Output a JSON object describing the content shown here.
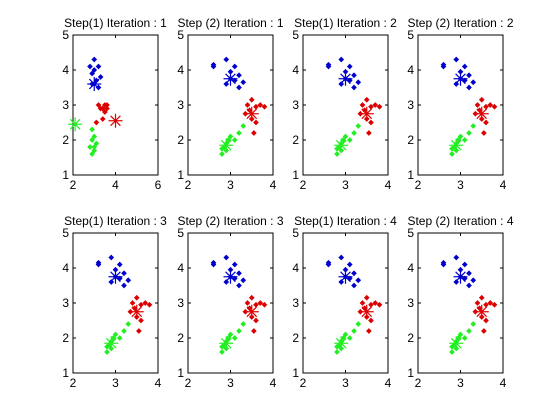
{
  "colors": {
    "blue": "#0000cc",
    "red": "#dd0000",
    "green": "#22ee22",
    "axis": "#000000",
    "background": "#ffffff"
  },
  "chart_data": [
    {
      "type": "scatter",
      "title": "Step(1) Iteration : 1",
      "xlim": [
        2,
        6
      ],
      "ylim": [
        1,
        5
      ],
      "xticks": [
        "2",
        "4",
        "6"
      ],
      "yticks": [
        "1",
        "2",
        "3",
        "4",
        "5"
      ],
      "series": [
        {
          "color": "blue",
          "marker": "point",
          "x": [
            2.8,
            3.0,
            3.2,
            2.9,
            3.1,
            3.0,
            3.3,
            3.0,
            3.2,
            2.9
          ],
          "y": [
            4.1,
            4.3,
            4.1,
            3.9,
            3.7,
            3.6,
            3.8,
            4.0,
            3.5,
            3.6
          ]
        },
        {
          "color": "red",
          "marker": "point",
          "x": [
            3.2,
            3.5,
            3.4,
            3.6,
            3.3,
            3.1,
            3.5,
            3.6,
            3.4
          ],
          "y": [
            3.0,
            3.0,
            2.9,
            2.9,
            2.9,
            2.5,
            2.8,
            3.0,
            2.6
          ]
        },
        {
          "color": "green",
          "marker": "point",
          "x": [
            2.9,
            3.0,
            2.8,
            3.1,
            2.9,
            3.0,
            2.9,
            3.0
          ],
          "y": [
            2.3,
            2.1,
            1.8,
            1.9,
            1.6,
            1.7,
            2.0,
            1.8
          ]
        },
        {
          "color": "blue",
          "marker": "star",
          "x": [
            3.0
          ],
          "y": [
            3.6
          ]
        },
        {
          "color": "red",
          "marker": "star",
          "x": [
            4.0
          ],
          "y": [
            2.55
          ]
        },
        {
          "color": "green",
          "marker": "star",
          "x": [
            2.1
          ],
          "y": [
            2.45
          ]
        }
      ]
    },
    {
      "type": "scatter",
      "title": "Step (2) Iteration : 1",
      "xlim": [
        2,
        4
      ],
      "ylim": [
        1,
        5
      ],
      "xticks": [
        "2",
        "3",
        "4"
      ],
      "yticks": [
        "1",
        "2",
        "3",
        "4",
        "5"
      ],
      "series": [
        {
          "color": "blue",
          "marker": "point",
          "x": [
            2.6,
            2.6,
            2.9,
            3.1,
            3.2,
            3.3,
            3.0,
            2.9,
            3.1,
            3.2,
            3.0
          ],
          "y": [
            4.15,
            4.1,
            4.3,
            4.1,
            3.85,
            3.65,
            3.75,
            3.6,
            3.7,
            3.5,
            3.95
          ]
        },
        {
          "color": "red",
          "marker": "point",
          "x": [
            3.4,
            3.5,
            3.6,
            3.7,
            3.8,
            3.45,
            3.5,
            3.6,
            3.55,
            3.35
          ],
          "y": [
            3.0,
            3.15,
            2.95,
            3.0,
            2.95,
            2.85,
            2.6,
            2.5,
            2.2,
            2.75
          ]
        },
        {
          "color": "green",
          "marker": "point",
          "x": [
            2.8,
            2.9,
            2.85,
            2.9,
            2.95,
            3.0,
            3.2,
            3.3,
            3.1,
            2.8
          ],
          "y": [
            1.6,
            1.7,
            1.8,
            1.9,
            2.0,
            2.1,
            2.2,
            2.4,
            2.0,
            1.75
          ]
        },
        {
          "color": "blue",
          "marker": "star",
          "x": [
            3.0
          ],
          "y": [
            3.75
          ]
        },
        {
          "color": "red",
          "marker": "star",
          "x": [
            3.5
          ],
          "y": [
            2.75
          ]
        },
        {
          "color": "green",
          "marker": "star",
          "x": [
            2.9
          ],
          "y": [
            1.85
          ]
        }
      ]
    },
    {
      "type": "scatter",
      "title": "Step(1) Iteration : 2",
      "xlim": [
        2,
        4
      ],
      "ylim": [
        1,
        5
      ],
      "xticks": [
        "2",
        "3",
        "4"
      ],
      "yticks": [
        "1",
        "2",
        "3",
        "4",
        "5"
      ],
      "series": [
        {
          "color": "blue",
          "marker": "point",
          "x": [
            2.6,
            2.6,
            2.9,
            3.1,
            3.2,
            3.3,
            3.0,
            2.9,
            3.1,
            3.2,
            3.0
          ],
          "y": [
            4.15,
            4.1,
            4.3,
            4.1,
            3.85,
            3.65,
            3.75,
            3.6,
            3.7,
            3.5,
            3.95
          ]
        },
        {
          "color": "red",
          "marker": "point",
          "x": [
            3.4,
            3.5,
            3.6,
            3.7,
            3.8,
            3.45,
            3.5,
            3.6,
            3.55,
            3.35
          ],
          "y": [
            3.0,
            3.15,
            2.95,
            3.0,
            2.95,
            2.85,
            2.6,
            2.5,
            2.2,
            2.75
          ]
        },
        {
          "color": "green",
          "marker": "point",
          "x": [
            2.8,
            2.9,
            2.85,
            2.9,
            2.95,
            3.0,
            3.2,
            3.3,
            3.1,
            2.8
          ],
          "y": [
            1.6,
            1.7,
            1.8,
            1.9,
            2.0,
            2.1,
            2.2,
            2.4,
            2.0,
            1.75
          ]
        },
        {
          "color": "blue",
          "marker": "star",
          "x": [
            3.0
          ],
          "y": [
            3.75
          ]
        },
        {
          "color": "red",
          "marker": "star",
          "x": [
            3.5
          ],
          "y": [
            2.75
          ]
        },
        {
          "color": "green",
          "marker": "star",
          "x": [
            2.9
          ],
          "y": [
            1.85
          ]
        }
      ]
    },
    {
      "type": "scatter",
      "title": "Step (2) Iteration : 2",
      "xlim": [
        2,
        4
      ],
      "ylim": [
        1,
        5
      ],
      "xticks": [
        "2",
        "3",
        "4"
      ],
      "yticks": [
        "1",
        "2",
        "3",
        "4",
        "5"
      ],
      "series": [
        {
          "color": "blue",
          "marker": "point",
          "x": [
            2.6,
            2.6,
            2.9,
            3.1,
            3.2,
            3.3,
            3.0,
            2.9,
            3.1,
            3.2,
            3.0
          ],
          "y": [
            4.15,
            4.1,
            4.3,
            4.1,
            3.85,
            3.65,
            3.75,
            3.6,
            3.7,
            3.5,
            3.95
          ]
        },
        {
          "color": "red",
          "marker": "point",
          "x": [
            3.4,
            3.5,
            3.6,
            3.7,
            3.8,
            3.45,
            3.5,
            3.6,
            3.55,
            3.35
          ],
          "y": [
            3.0,
            3.15,
            2.95,
            3.0,
            2.95,
            2.85,
            2.6,
            2.5,
            2.2,
            2.75
          ]
        },
        {
          "color": "green",
          "marker": "point",
          "x": [
            2.8,
            2.9,
            2.85,
            2.9,
            2.95,
            3.0,
            3.2,
            3.3,
            3.1,
            2.8
          ],
          "y": [
            1.6,
            1.7,
            1.8,
            1.9,
            2.0,
            2.1,
            2.2,
            2.4,
            2.0,
            1.75
          ]
        },
        {
          "color": "blue",
          "marker": "star",
          "x": [
            3.0
          ],
          "y": [
            3.75
          ]
        },
        {
          "color": "red",
          "marker": "star",
          "x": [
            3.5
          ],
          "y": [
            2.75
          ]
        },
        {
          "color": "green",
          "marker": "star",
          "x": [
            2.9
          ],
          "y": [
            1.85
          ]
        }
      ]
    },
    {
      "type": "scatter",
      "title": "Step(1) Iteration : 3",
      "xlim": [
        2,
        4
      ],
      "ylim": [
        1,
        5
      ],
      "xticks": [
        "2",
        "3",
        "4"
      ],
      "yticks": [
        "1",
        "2",
        "3",
        "4",
        "5"
      ],
      "series": [
        {
          "color": "blue",
          "marker": "point",
          "x": [
            2.6,
            2.6,
            2.9,
            3.1,
            3.2,
            3.3,
            3.0,
            2.9,
            3.1,
            3.2,
            3.0
          ],
          "y": [
            4.15,
            4.1,
            4.3,
            4.1,
            3.85,
            3.65,
            3.75,
            3.6,
            3.7,
            3.5,
            3.95
          ]
        },
        {
          "color": "red",
          "marker": "point",
          "x": [
            3.4,
            3.5,
            3.6,
            3.7,
            3.8,
            3.45,
            3.5,
            3.6,
            3.55,
            3.35
          ],
          "y": [
            3.0,
            3.15,
            2.95,
            3.0,
            2.95,
            2.85,
            2.6,
            2.5,
            2.2,
            2.75
          ]
        },
        {
          "color": "green",
          "marker": "point",
          "x": [
            2.8,
            2.9,
            2.85,
            2.9,
            2.95,
            3.0,
            3.2,
            3.3,
            3.1,
            2.8
          ],
          "y": [
            1.6,
            1.7,
            1.8,
            1.9,
            2.0,
            2.1,
            2.2,
            2.4,
            2.0,
            1.75
          ]
        },
        {
          "color": "blue",
          "marker": "star",
          "x": [
            3.0
          ],
          "y": [
            3.75
          ]
        },
        {
          "color": "red",
          "marker": "star",
          "x": [
            3.5
          ],
          "y": [
            2.75
          ]
        },
        {
          "color": "green",
          "marker": "star",
          "x": [
            2.9
          ],
          "y": [
            1.85
          ]
        }
      ]
    },
    {
      "type": "scatter",
      "title": "Step (2) Iteration : 3",
      "xlim": [
        2,
        4
      ],
      "ylim": [
        1,
        5
      ],
      "xticks": [
        "2",
        "3",
        "4"
      ],
      "yticks": [
        "1",
        "2",
        "3",
        "4",
        "5"
      ],
      "series": [
        {
          "color": "blue",
          "marker": "point",
          "x": [
            2.6,
            2.6,
            2.9,
            3.1,
            3.2,
            3.3,
            3.0,
            2.9,
            3.1,
            3.2,
            3.0
          ],
          "y": [
            4.15,
            4.1,
            4.3,
            4.1,
            3.85,
            3.65,
            3.75,
            3.6,
            3.7,
            3.5,
            3.95
          ]
        },
        {
          "color": "red",
          "marker": "point",
          "x": [
            3.4,
            3.5,
            3.6,
            3.7,
            3.8,
            3.45,
            3.5,
            3.6,
            3.55,
            3.35
          ],
          "y": [
            3.0,
            3.15,
            2.95,
            3.0,
            2.95,
            2.85,
            2.6,
            2.5,
            2.2,
            2.75
          ]
        },
        {
          "color": "green",
          "marker": "point",
          "x": [
            2.8,
            2.9,
            2.85,
            2.9,
            2.95,
            3.0,
            3.2,
            3.3,
            3.1,
            2.8
          ],
          "y": [
            1.6,
            1.7,
            1.8,
            1.9,
            2.0,
            2.1,
            2.2,
            2.4,
            2.0,
            1.75
          ]
        },
        {
          "color": "blue",
          "marker": "star",
          "x": [
            3.0
          ],
          "y": [
            3.75
          ]
        },
        {
          "color": "red",
          "marker": "star",
          "x": [
            3.5
          ],
          "y": [
            2.75
          ]
        },
        {
          "color": "green",
          "marker": "star",
          "x": [
            2.9
          ],
          "y": [
            1.85
          ]
        }
      ]
    },
    {
      "type": "scatter",
      "title": "Step(1) Iteration : 4",
      "xlim": [
        2,
        4
      ],
      "ylim": [
        1,
        5
      ],
      "xticks": [
        "2",
        "3",
        "4"
      ],
      "yticks": [
        "1",
        "2",
        "3",
        "4",
        "5"
      ],
      "series": [
        {
          "color": "blue",
          "marker": "point",
          "x": [
            2.6,
            2.6,
            2.9,
            3.1,
            3.2,
            3.3,
            3.0,
            2.9,
            3.1,
            3.2,
            3.0
          ],
          "y": [
            4.15,
            4.1,
            4.3,
            4.1,
            3.85,
            3.65,
            3.75,
            3.6,
            3.7,
            3.5,
            3.95
          ]
        },
        {
          "color": "red",
          "marker": "point",
          "x": [
            3.4,
            3.5,
            3.6,
            3.7,
            3.8,
            3.45,
            3.5,
            3.6,
            3.55,
            3.35
          ],
          "y": [
            3.0,
            3.15,
            2.95,
            3.0,
            2.95,
            2.85,
            2.6,
            2.5,
            2.2,
            2.75
          ]
        },
        {
          "color": "green",
          "marker": "point",
          "x": [
            2.8,
            2.9,
            2.85,
            2.9,
            2.95,
            3.0,
            3.2,
            3.3,
            3.1,
            2.8
          ],
          "y": [
            1.6,
            1.7,
            1.8,
            1.9,
            2.0,
            2.1,
            2.2,
            2.4,
            2.0,
            1.75
          ]
        },
        {
          "color": "blue",
          "marker": "star",
          "x": [
            3.0
          ],
          "y": [
            3.75
          ]
        },
        {
          "color": "red",
          "marker": "star",
          "x": [
            3.5
          ],
          "y": [
            2.75
          ]
        },
        {
          "color": "green",
          "marker": "star",
          "x": [
            2.9
          ],
          "y": [
            1.85
          ]
        }
      ]
    },
    {
      "type": "scatter",
      "title": "Step (2) Iteration : 4",
      "xlim": [
        2,
        4
      ],
      "ylim": [
        1,
        5
      ],
      "xticks": [
        "2",
        "3",
        "4"
      ],
      "yticks": [
        "1",
        "2",
        "3",
        "4",
        "5"
      ],
      "series": [
        {
          "color": "blue",
          "marker": "point",
          "x": [
            2.6,
            2.6,
            2.9,
            3.1,
            3.2,
            3.3,
            3.0,
            2.9,
            3.1,
            3.2,
            3.0
          ],
          "y": [
            4.15,
            4.1,
            4.3,
            4.1,
            3.85,
            3.65,
            3.75,
            3.6,
            3.7,
            3.5,
            3.95
          ]
        },
        {
          "color": "red",
          "marker": "point",
          "x": [
            3.4,
            3.5,
            3.6,
            3.7,
            3.8,
            3.45,
            3.5,
            3.6,
            3.55,
            3.35
          ],
          "y": [
            3.0,
            3.15,
            2.95,
            3.0,
            2.95,
            2.85,
            2.6,
            2.5,
            2.2,
            2.75
          ]
        },
        {
          "color": "green",
          "marker": "point",
          "x": [
            2.8,
            2.9,
            2.85,
            2.9,
            2.95,
            3.0,
            3.2,
            3.3,
            3.1,
            2.8
          ],
          "y": [
            1.6,
            1.7,
            1.8,
            1.9,
            2.0,
            2.1,
            2.2,
            2.4,
            2.0,
            1.75
          ]
        },
        {
          "color": "blue",
          "marker": "star",
          "x": [
            3.0
          ],
          "y": [
            3.75
          ]
        },
        {
          "color": "red",
          "marker": "star",
          "x": [
            3.5
          ],
          "y": [
            2.75
          ]
        },
        {
          "color": "green",
          "marker": "star",
          "x": [
            2.9
          ],
          "y": [
            1.85
          ]
        }
      ]
    }
  ]
}
